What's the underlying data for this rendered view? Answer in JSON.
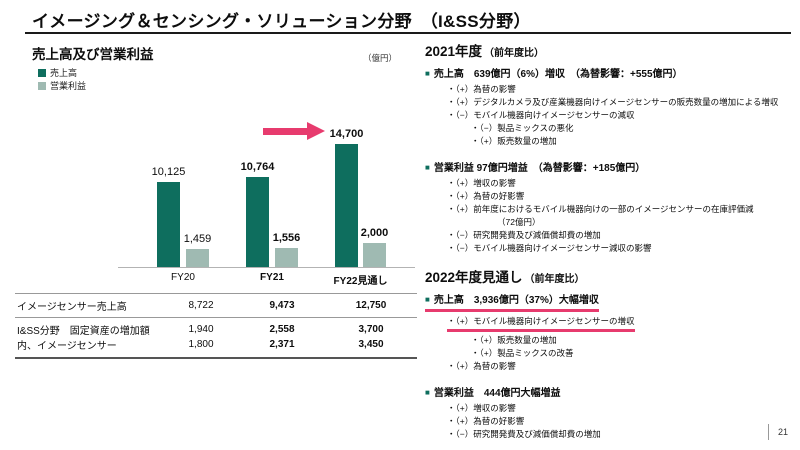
{
  "slide": {
    "title": "イメージング＆センシング・ソリューション分野　（I&SS分野）",
    "page_number": "21"
  },
  "chart": {
    "heading": "売上高及び営業利益",
    "unit_label": "（億円）",
    "legend": [
      {
        "label": "売上高",
        "color": "#0e6e5e"
      },
      {
        "label": "営業利益",
        "color": "#9fbab2"
      }
    ]
  },
  "chart_data": {
    "type": "bar",
    "title": "売上高及び営業利益",
    "unit": "億円",
    "categories": [
      "FY20",
      "FY21",
      "FY22見通し"
    ],
    "series": [
      {
        "name": "売上高",
        "values": [
          10125,
          10764,
          14700
        ],
        "labels": [
          "10,125",
          "10,764",
          "14,700"
        ],
        "color": "#0e6e5e"
      },
      {
        "name": "営業利益",
        "values": [
          1459,
          1556,
          2000
        ],
        "labels": [
          "1,459",
          "1,556",
          "2,000"
        ],
        "color": "#9fbab2"
      }
    ],
    "ylim": [
      0,
      15000
    ],
    "grid": false,
    "legend_position": "top-left",
    "annotations": [
      {
        "type": "arrow",
        "target": "FY22見通し 売上高 14,700",
        "color": "#e73b6e"
      }
    ]
  },
  "table": {
    "rows": [
      {
        "label": "イメージセンサー売上高",
        "values": [
          "8,722",
          "9,473",
          "12,750"
        ]
      },
      {
        "label": "I&SS分野　固定資産の増加額",
        "values": [
          "1,940",
          "2,558",
          "3,700"
        ]
      },
      {
        "label": "内、イメージセンサー",
        "values": [
          "1,800",
          "2,371",
          "3,450"
        ]
      }
    ]
  },
  "right_panel": {
    "sections": [
      {
        "heading": "2021年度",
        "suffix": "（前年度比）",
        "items": [
          {
            "level": 1,
            "text": "売上高　639億円（6%）増収　（為替影響：+555億円）"
          },
          {
            "level": 2,
            "text": "・（+）為替の影響"
          },
          {
            "level": 2,
            "text": "・（+）デジタルカメラ及び産業機器向けイメージセンサーの販売数量の増加による増収"
          },
          {
            "level": 2,
            "text": "・（−）モバイル機器向けイメージセンサーの減収"
          },
          {
            "level": 3,
            "text": "・（−）製品ミックスの悪化"
          },
          {
            "level": 3,
            "text": "・（+）販売数量の増加"
          },
          {
            "level": 1,
            "gap": true,
            "text": "営業利益 97億円増益　（為替影響：+185億円）"
          },
          {
            "level": 2,
            "text": "・（+）増収の影響"
          },
          {
            "level": 2,
            "text": "・（+）為替の好影響"
          },
          {
            "level": 2,
            "text": "・（+）前年度におけるモバイル機器向けの一部のイメージセンサーの在庫評価減"
          },
          {
            "level": 4,
            "text": "（72億円）"
          },
          {
            "level": 2,
            "text": "・（−）研究開発費及び減価償却費の増加"
          },
          {
            "level": 2,
            "text": "・（−）モバイル機器向けイメージセンサー減収の影響"
          }
        ]
      },
      {
        "heading": "2022年度見通し",
        "suffix": "（前年度比）",
        "items": [
          {
            "level": 1,
            "text": "売上高　3,936億円（37%）大幅増収",
            "underline": true
          },
          {
            "level": 2,
            "text": "・（+）モバイル機器向けイメージセンサーの増収",
            "underline": true
          },
          {
            "level": 3,
            "text": "・（+）販売数量の増加"
          },
          {
            "level": 3,
            "text": "・（+）製品ミックスの改善"
          },
          {
            "level": 2,
            "text": "・（+）為替の影響"
          },
          {
            "level": 1,
            "gap": true,
            "text": "営業利益　444億円大幅増益"
          },
          {
            "level": 2,
            "text": "・（+）増収の影響"
          },
          {
            "level": 2,
            "text": "・（+）為替の好影響"
          },
          {
            "level": 2,
            "text": "・（−）研究開発費及び減価償却費の増加"
          }
        ]
      }
    ]
  },
  "colors": {
    "sales_bar": "#0e6e5e",
    "profit_bar": "#9fbab2",
    "accent_pink": "#e73b6e",
    "axis_line": "#b3b3b3"
  }
}
